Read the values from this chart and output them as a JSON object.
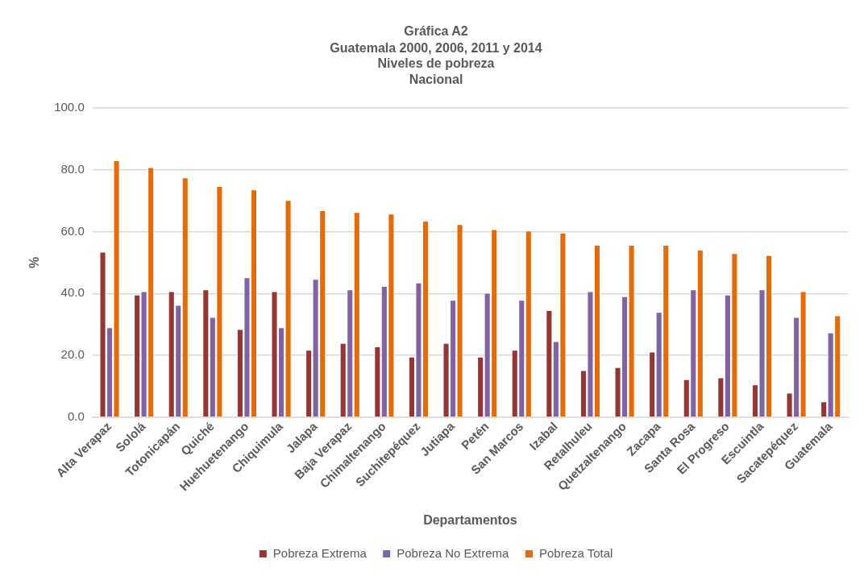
{
  "chart_data": {
    "type": "bar",
    "title": "Gráfica A2",
    "subtitle": "Guatemala 2000, 2006, 2011 y 2014\nNiveles de pobreza\nNacional",
    "xlabel": "Departamentos",
    "ylabel": "%",
    "categories": [
      "Alta Verapaz",
      "Sololá",
      "Totonicapán",
      "Quiché",
      "Huehuetenango",
      "Chiquimula",
      "Jalapa",
      "Baja Verapaz",
      "Chimaltenango",
      "Suchitepéquez",
      "Jutiapa",
      "Petén",
      "San Marcos",
      "Izabal",
      "Retalhuleu",
      "Quetzaltenango",
      "Zacapa",
      "Santa Rosa",
      "El Progreso",
      "Escuintla",
      "Sacatepéquez",
      "Guatemala"
    ],
    "series": [
      {
        "name": "Pobreza Extrema",
        "color": "#943634",
        "values": [
          53.5,
          39.6,
          40.7,
          41.3,
          28.5,
          40.7,
          21.8,
          24.0,
          22.9,
          19.6,
          24.0,
          19.6,
          21.8,
          34.6,
          15.2,
          16.2,
          21.2,
          12.3,
          12.9,
          10.6,
          7.9,
          5.1
        ]
      },
      {
        "name": "Pobreza No Extrema",
        "color": "#8064a2",
        "values": [
          29.1,
          40.7,
          36.3,
          32.4,
          45.2,
          29.1,
          44.7,
          41.3,
          42.4,
          43.5,
          37.9,
          40.2,
          37.9,
          24.6,
          40.7,
          39.1,
          34.0,
          41.3,
          39.6,
          41.3,
          32.4,
          27.4
        ]
      },
      {
        "name": "Pobreza Total",
        "color": "#e36c09",
        "values": [
          83.0,
          80.8,
          77.5,
          74.7,
          73.6,
          70.2,
          66.9,
          66.3,
          65.8,
          63.5,
          62.4,
          60.8,
          60.3,
          59.6,
          55.7,
          55.7,
          55.7,
          54.1,
          53.0,
          52.4,
          40.7,
          32.9
        ]
      }
    ],
    "ylim": [
      0,
      100
    ],
    "yticks": [
      {
        "value": 0,
        "label": "0.0"
      },
      {
        "value": 20,
        "label": "20.0"
      },
      {
        "value": 40,
        "label": "40.0"
      },
      {
        "value": 60,
        "label": "60.0"
      },
      {
        "value": 80,
        "label": "80.0"
      },
      {
        "value": 100,
        "label": "100.0"
      }
    ],
    "grid": "y",
    "legend": "bottom"
  }
}
